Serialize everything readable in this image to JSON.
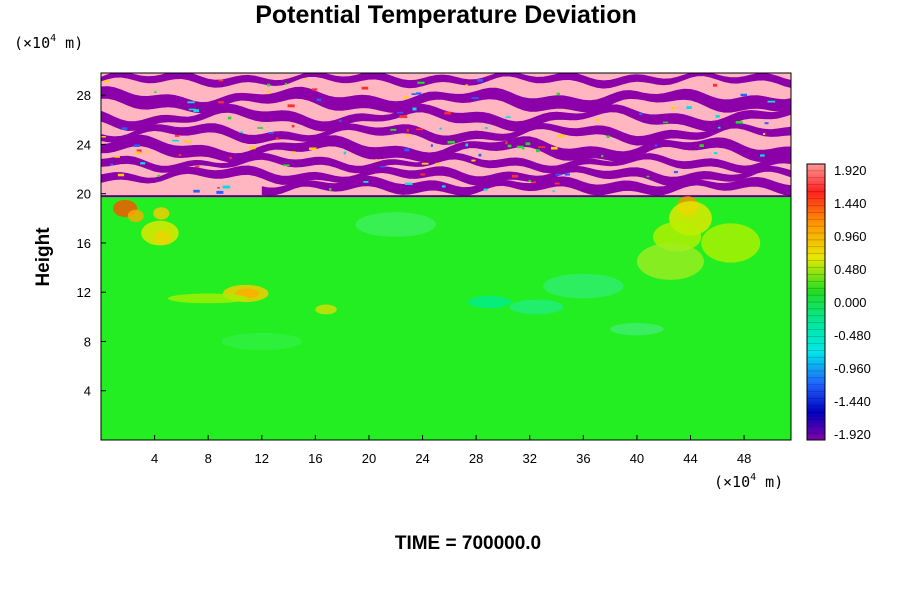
{
  "chart_data": {
    "type": "heatmap",
    "title": "Potential Temperature Deviation",
    "ylabel": "Height",
    "x_unit_prefix": "(×10",
    "x_unit_exp": "4",
    "x_unit_suffix": " m)",
    "y_unit_prefix": "(×10",
    "y_unit_exp": "4",
    "y_unit_suffix": " m)",
    "xlim": [
      0,
      51.5
    ],
    "ylim": [
      0,
      29.8
    ],
    "xticks": [
      4,
      8,
      12,
      16,
      20,
      24,
      28,
      32,
      36,
      40,
      44,
      48
    ],
    "yticks": [
      4,
      8,
      12,
      16,
      20,
      24,
      28
    ],
    "colorbar": {
      "levels": [
        "1.920",
        "1.440",
        "0.960",
        "0.480",
        "0.000",
        "-0.480",
        "-0.960",
        "-1.440",
        "-1.920"
      ],
      "vmin": -1.92,
      "vmax": 1.92
    },
    "colors": {
      "stratosphere_pink": "#ffb6c1",
      "stratosphere_purple": "#8b00a8",
      "troposphere_green": "#22ee22"
    },
    "footer": "TIME = 700000.0"
  }
}
